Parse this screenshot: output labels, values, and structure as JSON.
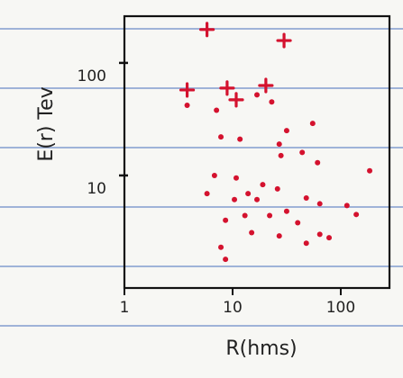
{
  "chart_data": {
    "type": "scatter",
    "x_label": "R(hms)",
    "y_label": "E(r) Tev",
    "log_x": true,
    "log_y": true,
    "xlim": [
      1,
      282
    ],
    "ylim": [
      1,
      260
    ],
    "xticks": [
      1,
      10,
      100
    ],
    "yticks": [
      10,
      100
    ],
    "series": [
      {
        "color": "#d4122e",
        "marker": "plus",
        "x": [
          5.8,
          29.9,
          3.8,
          8.9,
          10.8,
          20.3
        ],
        "values": [
          198,
          158,
          57.5,
          59.7,
          47,
          63
        ]
      },
      {
        "color": "#d4122e",
        "marker": "circle",
        "x": [
          3.8,
          7.1,
          16.8,
          23,
          11.7,
          31.6,
          55,
          27,
          28,
          44,
          61,
          7.8,
          6.8,
          10.8,
          26,
          19,
          5.8,
          13.9,
          10.4,
          16.8,
          31.6,
          22,
          48,
          64,
          114,
          13,
          8.6,
          40,
          64,
          27,
          15,
          48,
          7.8,
          8.6,
          185,
          139,
          78
        ],
        "values": [
          42,
          38,
          52,
          45,
          21,
          25,
          29,
          19,
          15,
          16,
          13,
          22,
          10,
          9.5,
          7.6,
          8.3,
          6.9,
          6.9,
          6.1,
          6.1,
          4.8,
          4.4,
          6.3,
          5.6,
          5.4,
          4.4,
          4.0,
          3.8,
          3.0,
          2.9,
          3.1,
          2.5,
          2.3,
          1.8,
          11,
          4.5,
          2.8
        ]
      }
    ]
  }
}
